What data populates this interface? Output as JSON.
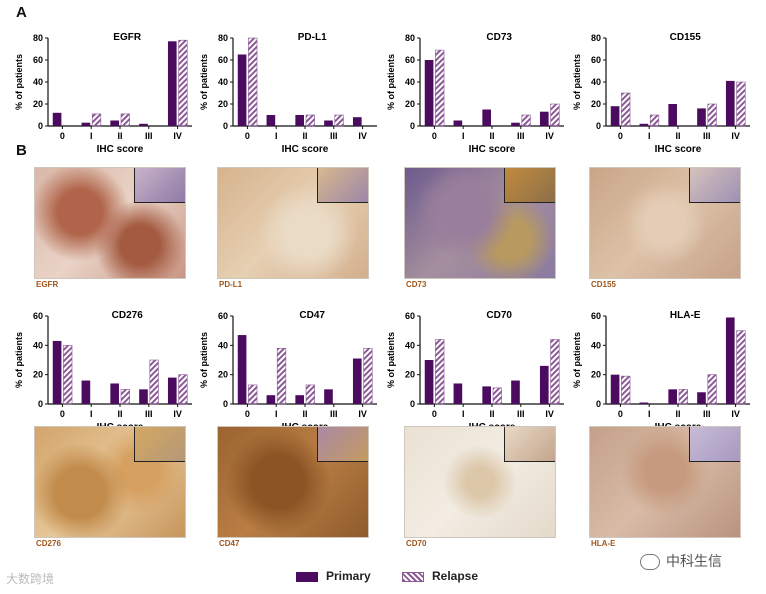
{
  "panels": {
    "a": "A",
    "b": "B"
  },
  "colors": {
    "primary": "#4b0b5e",
    "relapse_stripe": "#8b5a96"
  },
  "legend": {
    "primary": "Primary",
    "relapse": "Relapse"
  },
  "watermarks": {
    "left": "大数跨境",
    "right": "中科生信"
  },
  "micro_labels": [
    "EGFR",
    "PD-L1",
    "CD73",
    "CD155",
    "CD276",
    "CD47",
    "CD70",
    "HLA-E"
  ],
  "chart_data": [
    {
      "type": "bar",
      "title": "EGFR",
      "xlabel": "IHC score",
      "ylabel": "% of patients",
      "categories": [
        "0",
        "I",
        "II",
        "III",
        "IV"
      ],
      "ylim": [
        0,
        80
      ],
      "yticks": [
        0,
        20,
        40,
        60,
        80
      ],
      "series": [
        {
          "name": "Primary",
          "values": [
            12,
            3,
            5,
            2,
            77
          ]
        },
        {
          "name": "Relapse",
          "values": [
            0,
            11,
            11,
            0,
            78
          ]
        }
      ]
    },
    {
      "type": "bar",
      "title": "PD-L1",
      "xlabel": "IHC score",
      "ylabel": "% of patients",
      "categories": [
        "0",
        "I",
        "II",
        "III",
        "IV"
      ],
      "ylim": [
        0,
        80
      ],
      "yticks": [
        0,
        20,
        40,
        60,
        80
      ],
      "series": [
        {
          "name": "Primary",
          "values": [
            65,
            10,
            10,
            5,
            8
          ]
        },
        {
          "name": "Relapse",
          "values": [
            80,
            0,
            10,
            10,
            0
          ]
        }
      ]
    },
    {
      "type": "bar",
      "title": "CD73",
      "xlabel": "IHC score",
      "ylabel": "% of patients",
      "categories": [
        "0",
        "I",
        "II",
        "III",
        "IV"
      ],
      "ylim": [
        0,
        80
      ],
      "yticks": [
        0,
        20,
        40,
        60,
        80
      ],
      "series": [
        {
          "name": "Primary",
          "values": [
            60,
            5,
            15,
            3,
            13
          ]
        },
        {
          "name": "Relapse",
          "values": [
            69,
            0,
            0,
            10,
            20
          ]
        }
      ]
    },
    {
      "type": "bar",
      "title": "CD155",
      "xlabel": "IHC score",
      "ylabel": "% of patients",
      "categories": [
        "0",
        "I",
        "II",
        "III",
        "IV"
      ],
      "ylim": [
        0,
        80
      ],
      "yticks": [
        0,
        20,
        40,
        60,
        80
      ],
      "series": [
        {
          "name": "Primary",
          "values": [
            18,
            2,
            20,
            16,
            41
          ]
        },
        {
          "name": "Relapse",
          "values": [
            30,
            10,
            0,
            20,
            40
          ]
        }
      ]
    },
    {
      "type": "bar",
      "title": "CD276",
      "xlabel": "IHC score",
      "ylabel": "% of patients",
      "categories": [
        "0",
        "I",
        "II",
        "III",
        "IV"
      ],
      "ylim": [
        0,
        60
      ],
      "yticks": [
        0,
        20,
        40,
        60
      ],
      "series": [
        {
          "name": "Primary",
          "values": [
            43,
            16,
            14,
            10,
            18
          ]
        },
        {
          "name": "Relapse",
          "values": [
            40,
            0,
            10,
            30,
            20
          ]
        }
      ]
    },
    {
      "type": "bar",
      "title": "CD47",
      "xlabel": "IHC score",
      "ylabel": "% of patients",
      "categories": [
        "0",
        "I",
        "II",
        "III",
        "IV"
      ],
      "ylim": [
        0,
        60
      ],
      "yticks": [
        0,
        20,
        40,
        60
      ],
      "series": [
        {
          "name": "Primary",
          "values": [
            47,
            6,
            6,
            10,
            31
          ]
        },
        {
          "name": "Relapse",
          "values": [
            13,
            38,
            13,
            0,
            38
          ]
        }
      ]
    },
    {
      "type": "bar",
      "title": "CD70",
      "xlabel": "IHC score",
      "ylabel": "% of patients",
      "categories": [
        "0",
        "I",
        "II",
        "III",
        "IV"
      ],
      "ylim": [
        0,
        60
      ],
      "yticks": [
        0,
        20,
        40,
        60
      ],
      "series": [
        {
          "name": "Primary",
          "values": [
            30,
            14,
            12,
            16,
            26
          ]
        },
        {
          "name": "Relapse",
          "values": [
            44,
            0,
            11,
            0,
            44
          ]
        }
      ]
    },
    {
      "type": "bar",
      "title": "HLA-E",
      "xlabel": "IHC score",
      "ylabel": "% of patients",
      "categories": [
        "0",
        "I",
        "II",
        "III",
        "IV"
      ],
      "ylim": [
        0,
        60
      ],
      "yticks": [
        0,
        20,
        40,
        60
      ],
      "series": [
        {
          "name": "Primary",
          "values": [
            20,
            1,
            10,
            8,
            59
          ]
        },
        {
          "name": "Relapse",
          "values": [
            19,
            0,
            10,
            20,
            50
          ]
        }
      ]
    }
  ]
}
